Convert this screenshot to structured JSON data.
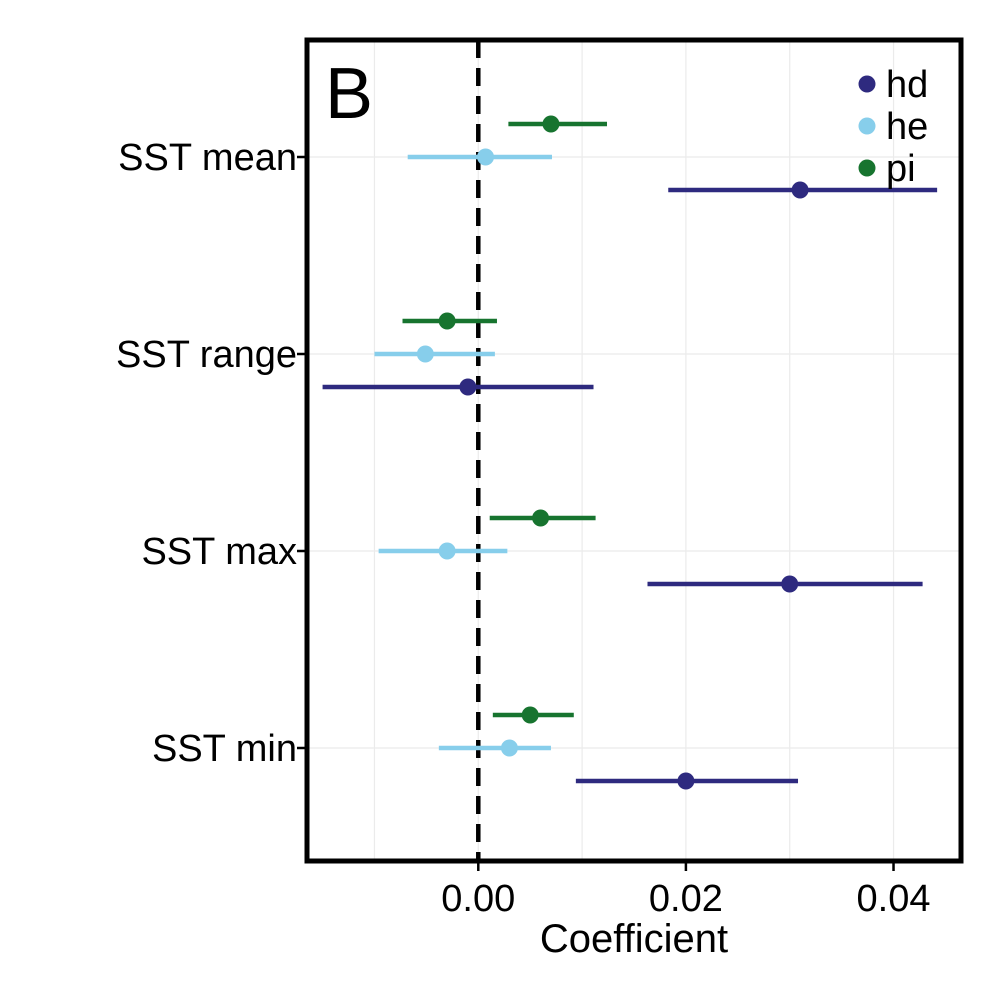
{
  "chart_data": {
    "type": "scatter",
    "panel_label": "B",
    "xlabel": "Coefficient",
    "ylabel": "",
    "xlim": [
      -0.0165,
      0.0465
    ],
    "x_ticks": [
      0.0,
      0.02,
      0.04
    ],
    "x_tick_labels": [
      "0.00",
      "0.02",
      "0.04"
    ],
    "grid": true,
    "reference_line": {
      "x": 0,
      "style": "dashed"
    },
    "legend_position": "top-right",
    "categories": [
      "SST mean",
      "SST range",
      "SST max",
      "SST min"
    ],
    "series": [
      {
        "name": "hd",
        "color": "#2e2a7f",
        "values": [
          0.031,
          -0.001,
          0.03,
          0.02
        ],
        "lower": [
          0.0183,
          -0.015,
          0.0163,
          0.0094
        ],
        "upper": [
          0.0442,
          0.0111,
          0.0428,
          0.0308
        ]
      },
      {
        "name": "he",
        "color": "#87ceeb",
        "values": [
          0.0007,
          -0.0051,
          -0.003,
          0.003
        ],
        "lower": [
          -0.0068,
          -0.01,
          -0.0096,
          -0.0038
        ],
        "upper": [
          0.0071,
          0.0016,
          0.0028,
          0.007
        ]
      },
      {
        "name": "pi",
        "color": "#17742f",
        "values": [
          0.007,
          -0.003,
          0.006,
          0.005
        ],
        "lower": [
          0.0029,
          -0.0073,
          0.0011,
          0.0014
        ],
        "upper": [
          0.0124,
          0.0018,
          0.0113,
          0.0092
        ]
      }
    ]
  }
}
